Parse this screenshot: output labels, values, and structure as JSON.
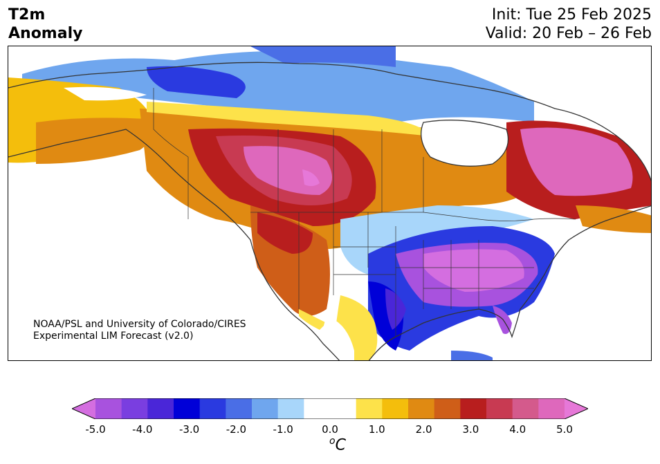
{
  "title": {
    "line1": "T2m",
    "line2": "Anomaly"
  },
  "dates": {
    "init": "Init: Tue 25 Feb 2025",
    "valid": "Valid: 20 Feb – 26 Feb"
  },
  "credit": {
    "line1": "NOAA/PSL and University of Colorado/CIRES",
    "line2": "Experimental LIM Forecast (v2.0)"
  },
  "colorbar": {
    "ticks": [
      "-5.0",
      "-4.0",
      "-3.0",
      "-2.0",
      "-1.0",
      "0.0",
      "1.0",
      "2.0",
      "3.0",
      "4.0",
      "5.0"
    ],
    "unit_sup": "o",
    "unit_main": "C",
    "colors": [
      "#d46ee0",
      "#a852de",
      "#7a3ee0",
      "#4a26d8",
      "#0000d8",
      "#2a3ae0",
      "#4a6ee6",
      "#6fa6ee",
      "#a8d6fa",
      "#ffffff",
      "#ffffff",
      "#fde24a",
      "#f4be0c",
      "#e08a12",
      "#cf5e18",
      "#b81e1e",
      "#c83a52",
      "#d45a8c",
      "#de68bc",
      "#e678d8"
    ]
  }
}
